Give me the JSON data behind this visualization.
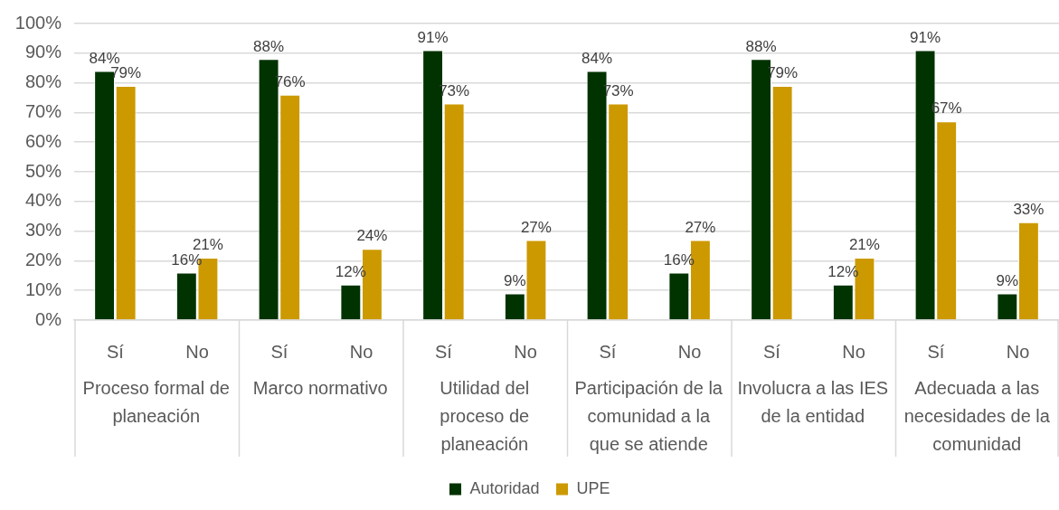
{
  "chart_data": {
    "type": "bar",
    "categories": [
      "Sí",
      "No",
      "Sí",
      "No",
      "Sí",
      "No",
      "Sí",
      "No",
      "Sí",
      "No",
      "Sí",
      "No"
    ],
    "series": [
      {
        "name": "Autoridad",
        "color": "#003300",
        "values": [
          84,
          16,
          88,
          12,
          91,
          9,
          84,
          16,
          88,
          12,
          91,
          9
        ],
        "value_labels": [
          "84%",
          "16%",
          "88%",
          "12%",
          "91%",
          "9%",
          "84%",
          "16%",
          "88%",
          "12%",
          "91%",
          "9%"
        ]
      },
      {
        "name": "UPE",
        "color": "#cc9900",
        "values": [
          79,
          21,
          76,
          24,
          73,
          27,
          73,
          27,
          79,
          21,
          67,
          33
        ],
        "value_labels": [
          "79%",
          "21%",
          "76%",
          "24%",
          "73%",
          "27%",
          "73%",
          "27%",
          "79%",
          "21%",
          "67%",
          "33%"
        ]
      }
    ],
    "ylim": [
      0,
      100
    ],
    "yticks": [
      {
        "value": 0,
        "label": "0%"
      },
      {
        "value": 10,
        "label": "10%"
      },
      {
        "value": 20,
        "label": "20%"
      },
      {
        "value": 30,
        "label": "30%"
      },
      {
        "value": 40,
        "label": "40%"
      },
      {
        "value": 50,
        "label": "50%"
      },
      {
        "value": 60,
        "label": "60%"
      },
      {
        "value": 70,
        "label": "70%"
      },
      {
        "value": 80,
        "label": "80%"
      },
      {
        "value": 90,
        "label": "90%"
      },
      {
        "value": 100,
        "label": "100%"
      }
    ],
    "grid": "y",
    "legend": "bottom",
    "annotations": [
      "Proceso formal de planeación",
      "Marco normativo",
      "Utilidad del proceso de planeación",
      "Participación de la comunidad a la que se atiende",
      "Involucra a las IES de la entidad",
      "Adecuada a las necesidades de la comunidad"
    ]
  }
}
